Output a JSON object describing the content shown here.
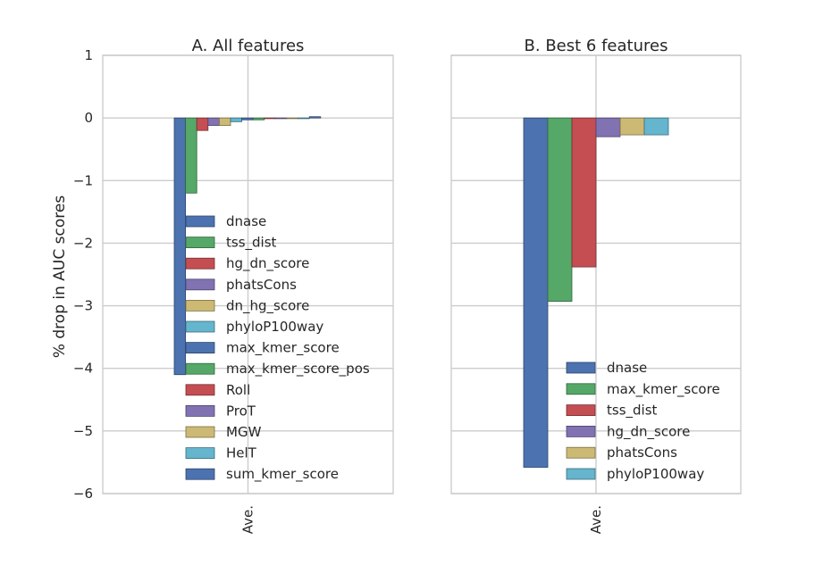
{
  "figure": {
    "ylabel": "% drop in AUC scores"
  },
  "chart_data": [
    {
      "type": "bar",
      "title": "A. All features",
      "categories": [
        "Ave."
      ],
      "xlabel": "",
      "ylabel": "% drop in AUC scores",
      "ylim": [
        -6,
        1
      ],
      "yticks": [
        1,
        0,
        -1,
        -2,
        -3,
        -4,
        -5,
        -6
      ],
      "grid": true,
      "legend_position": "lower center",
      "series": [
        {
          "name": "dnase",
          "values": [
            -4.1
          ],
          "color": "#4c72b0"
        },
        {
          "name": "tss_dist",
          "values": [
            -1.2
          ],
          "color": "#55a868"
        },
        {
          "name": "hg_dn_score",
          "values": [
            -0.2
          ],
          "color": "#c44e52"
        },
        {
          "name": "phatsCons",
          "values": [
            -0.12
          ],
          "color": "#8172b2"
        },
        {
          "name": "dn_hg_score",
          "values": [
            -0.12
          ],
          "color": "#ccb974"
        },
        {
          "name": "phyloP100way",
          "values": [
            -0.06
          ],
          "color": "#64b5cd"
        },
        {
          "name": "max_kmer_score",
          "values": [
            -0.03
          ],
          "color": "#4c72b0"
        },
        {
          "name": "max_kmer_score_pos",
          "values": [
            -0.03
          ],
          "color": "#55a868"
        },
        {
          "name": "Roll",
          "values": [
            -0.01
          ],
          "color": "#c44e52"
        },
        {
          "name": "ProT",
          "values": [
            -0.01
          ],
          "color": "#8172b2"
        },
        {
          "name": "MGW",
          "values": [
            -0.01
          ],
          "color": "#ccb974"
        },
        {
          "name": "HelT",
          "values": [
            -0.01
          ],
          "color": "#64b5cd"
        },
        {
          "name": "sum_kmer_score",
          "values": [
            0.02
          ],
          "color": "#4c72b0"
        }
      ]
    },
    {
      "type": "bar",
      "title": "B. Best 6 features",
      "categories": [
        "Ave."
      ],
      "xlabel": "",
      "ylabel": "",
      "ylim": [
        -6,
        1
      ],
      "yticks": [
        1,
        0,
        -1,
        -2,
        -3,
        -4,
        -5,
        -6
      ],
      "grid": true,
      "legend_position": "lower right",
      "series": [
        {
          "name": "dnase",
          "values": [
            -5.58
          ],
          "color": "#4c72b0"
        },
        {
          "name": "max_kmer_score",
          "values": [
            -2.93
          ],
          "color": "#55a868"
        },
        {
          "name": "tss_dist",
          "values": [
            -2.38
          ],
          "color": "#c44e52"
        },
        {
          "name": "hg_dn_score",
          "values": [
            -0.3
          ],
          "color": "#8172b2"
        },
        {
          "name": "phatsCons",
          "values": [
            -0.27
          ],
          "color": "#ccb974"
        },
        {
          "name": "phyloP100way",
          "values": [
            -0.27
          ],
          "color": "#64b5cd"
        }
      ]
    }
  ]
}
